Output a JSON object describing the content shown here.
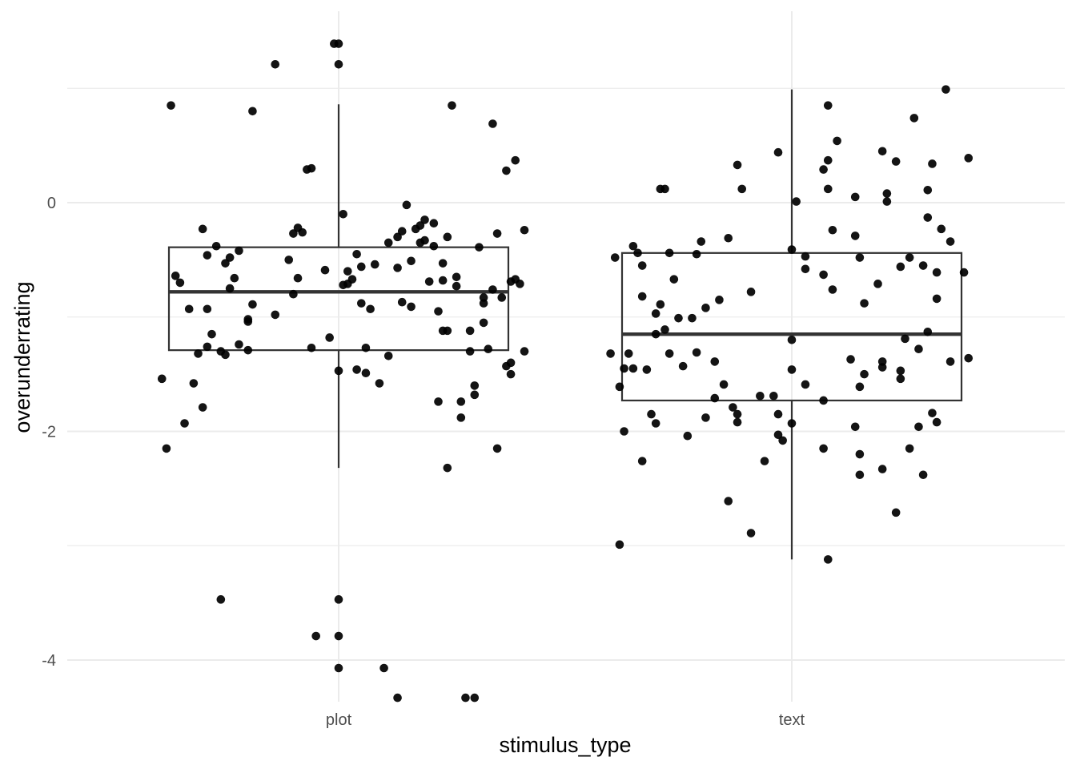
{
  "chart_data": {
    "type": "boxplot-jitter",
    "xlabel": "stimulus_type",
    "ylabel": "overunderrating",
    "categories": [
      "plot",
      "text"
    ],
    "ylim": [
      -4.3,
      1.7
    ],
    "y_ticks": [
      {
        "value": 0,
        "label": "0"
      },
      {
        "value": -2,
        "label": "-2"
      },
      {
        "value": -4,
        "label": "-4"
      }
    ],
    "y_minor_ticks": [
      1,
      -1,
      -3
    ],
    "grid": true,
    "colors": {
      "point": "#000000",
      "box": "#333333",
      "grid": "#ebebeb"
    },
    "boxes": [
      {
        "category": "plot",
        "whisker_low": -2.32,
        "q1": -1.29,
        "median": -0.78,
        "q3": -0.39,
        "whisker_high": 0.86
      },
      {
        "category": "text",
        "whisker_low": -3.12,
        "q1": -1.73,
        "median": -1.15,
        "q3": -0.44,
        "whisker_high": 0.99
      }
    ],
    "points": {
      "plot": [
        [
          -0.35,
          -0.7
        ],
        [
          -0.39,
          -1.54
        ],
        [
          -0.38,
          -2.15
        ],
        [
          -0.37,
          0.85
        ],
        [
          -0.36,
          -0.64
        ],
        [
          -0.34,
          -1.93
        ],
        [
          -0.33,
          -0.93
        ],
        [
          -0.32,
          -1.58
        ],
        [
          -0.31,
          -1.32
        ],
        [
          -0.3,
          -1.79
        ],
        [
          -0.3,
          -0.23
        ],
        [
          -0.29,
          -0.46
        ],
        [
          -0.29,
          -0.93
        ],
        [
          -0.29,
          -1.26
        ],
        [
          -0.28,
          -1.15
        ],
        [
          -0.27,
          -0.38
        ],
        [
          -0.26,
          -3.47
        ],
        [
          -0.26,
          -1.3
        ],
        [
          -0.25,
          -0.53
        ],
        [
          -0.25,
          -1.33
        ],
        [
          -0.24,
          -0.48
        ],
        [
          -0.24,
          -0.75
        ],
        [
          -0.23,
          -0.66
        ],
        [
          -0.22,
          -1.24
        ],
        [
          -0.22,
          -0.42
        ],
        [
          -0.2,
          -1.02
        ],
        [
          -0.2,
          -1.29
        ],
        [
          -0.2,
          -1.04
        ],
        [
          -0.19,
          -0.89
        ],
        [
          -0.19,
          0.8
        ],
        [
          -0.14,
          1.21
        ],
        [
          -0.14,
          -0.98
        ],
        [
          -0.11,
          -0.5
        ],
        [
          -0.1,
          -0.8
        ],
        [
          -0.1,
          -0.27
        ],
        [
          -0.09,
          -0.22
        ],
        [
          -0.09,
          -0.66
        ],
        [
          -0.08,
          -0.26
        ],
        [
          -0.07,
          0.29
        ],
        [
          -0.06,
          0.3
        ],
        [
          -0.06,
          -1.27
        ],
        [
          -0.05,
          -3.79
        ],
        [
          -0.03,
          -0.59
        ],
        [
          -0.02,
          -1.18
        ],
        [
          -0.01,
          1.39
        ],
        [
          0.0,
          1.39
        ],
        [
          0.0,
          1.21
        ],
        [
          0.0,
          -1.47
        ],
        [
          0.0,
          -3.47
        ],
        [
          0.0,
          -3.79
        ],
        [
          0.0,
          -4.07
        ],
        [
          0.01,
          -0.1
        ],
        [
          0.01,
          -0.72
        ],
        [
          0.02,
          -0.6
        ],
        [
          0.02,
          -0.71
        ],
        [
          0.03,
          -0.67
        ],
        [
          0.04,
          -0.45
        ],
        [
          0.04,
          -1.46
        ],
        [
          0.05,
          -0.88
        ],
        [
          0.05,
          -0.56
        ],
        [
          0.06,
          -1.27
        ],
        [
          0.06,
          -1.49
        ],
        [
          0.07,
          -0.93
        ],
        [
          0.08,
          -0.54
        ],
        [
          0.09,
          -1.58
        ],
        [
          0.1,
          -4.07
        ],
        [
          0.11,
          -1.34
        ],
        [
          0.11,
          -0.35
        ],
        [
          0.13,
          -0.57
        ],
        [
          0.13,
          -0.3
        ],
        [
          0.14,
          -0.25
        ],
        [
          0.14,
          -0.87
        ],
        [
          0.15,
          -0.02
        ],
        [
          0.16,
          -0.51
        ],
        [
          0.16,
          -0.91
        ],
        [
          0.17,
          -0.23
        ],
        [
          0.18,
          -0.2
        ],
        [
          0.18,
          -0.35
        ],
        [
          0.19,
          -0.33
        ],
        [
          0.19,
          -0.15
        ],
        [
          0.2,
          -0.69
        ],
        [
          0.21,
          -0.18
        ],
        [
          0.21,
          -0.38
        ],
        [
          0.22,
          -1.74
        ],
        [
          0.22,
          -0.95
        ],
        [
          0.23,
          -0.53
        ],
        [
          0.23,
          -1.12
        ],
        [
          0.23,
          -0.68
        ],
        [
          0.24,
          -2.32
        ],
        [
          0.24,
          -0.3
        ],
        [
          0.24,
          -1.12
        ],
        [
          0.25,
          0.85
        ],
        [
          0.26,
          -0.65
        ],
        [
          0.26,
          -0.73
        ],
        [
          0.27,
          -1.88
        ],
        [
          0.27,
          -1.74
        ],
        [
          0.29,
          -1.12
        ],
        [
          0.29,
          -1.3
        ],
        [
          0.3,
          -1.6
        ],
        [
          0.3,
          -1.68
        ],
        [
          0.31,
          -0.39
        ],
        [
          0.32,
          -0.88
        ],
        [
          0.32,
          -1.05
        ],
        [
          0.32,
          -0.83
        ],
        [
          0.33,
          -1.28
        ],
        [
          0.34,
          -0.76
        ],
        [
          0.34,
          0.69
        ],
        [
          0.35,
          -0.27
        ],
        [
          0.35,
          -2.15
        ],
        [
          0.36,
          -0.83
        ],
        [
          0.37,
          0.28
        ],
        [
          0.37,
          -1.43
        ],
        [
          0.38,
          -0.69
        ],
        [
          0.38,
          -1.4
        ],
        [
          0.38,
          -1.5
        ],
        [
          0.39,
          0.37
        ],
        [
          0.39,
          -0.67
        ],
        [
          0.4,
          -0.71
        ],
        [
          0.41,
          -0.24
        ],
        [
          0.41,
          -1.3
        ],
        [
          0.13,
          -4.33
        ],
        [
          0.28,
          -4.33
        ],
        [
          0.3,
          -4.33
        ]
      ],
      "text": [
        [
          -0.39,
          -0.48
        ],
        [
          -0.4,
          -1.32
        ],
        [
          -0.38,
          -2.99
        ],
        [
          -0.38,
          -1.61
        ],
        [
          -0.37,
          -2.0
        ],
        [
          -0.37,
          -1.45
        ],
        [
          -0.36,
          -1.32
        ],
        [
          -0.35,
          -1.45
        ],
        [
          -0.35,
          -0.38
        ],
        [
          -0.34,
          -0.44
        ],
        [
          -0.33,
          -2.26
        ],
        [
          -0.33,
          -0.55
        ],
        [
          -0.33,
          -0.82
        ],
        [
          -0.32,
          -1.46
        ],
        [
          -0.31,
          -1.85
        ],
        [
          -0.3,
          -1.15
        ],
        [
          -0.3,
          -0.97
        ],
        [
          -0.3,
          -1.93
        ],
        [
          -0.29,
          0.12
        ],
        [
          -0.29,
          -0.89
        ],
        [
          -0.28,
          -1.11
        ],
        [
          -0.28,
          0.12
        ],
        [
          -0.27,
          -1.32
        ],
        [
          -0.27,
          -0.44
        ],
        [
          -0.26,
          -0.67
        ],
        [
          -0.25,
          -1.01
        ],
        [
          -0.24,
          -1.43
        ],
        [
          -0.23,
          -2.04
        ],
        [
          -0.22,
          -1.01
        ],
        [
          -0.21,
          -1.31
        ],
        [
          -0.21,
          -0.45
        ],
        [
          -0.2,
          -0.34
        ],
        [
          -0.19,
          -0.92
        ],
        [
          -0.19,
          -1.88
        ],
        [
          -0.17,
          -1.39
        ],
        [
          -0.17,
          -1.71
        ],
        [
          -0.16,
          -0.85
        ],
        [
          -0.15,
          -1.59
        ],
        [
          -0.14,
          -0.31
        ],
        [
          -0.14,
          -2.61
        ],
        [
          -0.13,
          -1.79
        ],
        [
          -0.12,
          -1.85
        ],
        [
          -0.12,
          0.33
        ],
        [
          -0.12,
          -1.92
        ],
        [
          -0.11,
          0.12
        ],
        [
          -0.09,
          -2.89
        ],
        [
          -0.09,
          -0.78
        ],
        [
          -0.07,
          -1.69
        ],
        [
          -0.06,
          -2.26
        ],
        [
          -0.04,
          -1.69
        ],
        [
          -0.03,
          -2.03
        ],
        [
          -0.03,
          -1.85
        ],
        [
          -0.03,
          0.44
        ],
        [
          -0.02,
          -2.08
        ],
        [
          0.0,
          -1.46
        ],
        [
          0.0,
          -0.41
        ],
        [
          0.0,
          -1.2
        ],
        [
          0.0,
          -1.93
        ],
        [
          0.01,
          0.01
        ],
        [
          0.03,
          -0.47
        ],
        [
          0.03,
          -0.58
        ],
        [
          0.03,
          -1.59
        ],
        [
          0.07,
          -0.63
        ],
        [
          0.07,
          -1.73
        ],
        [
          0.07,
          -2.15
        ],
        [
          0.07,
          0.29
        ],
        [
          0.08,
          0.37
        ],
        [
          0.08,
          0.12
        ],
        [
          0.08,
          -3.12
        ],
        [
          0.08,
          0.85
        ],
        [
          0.09,
          -0.24
        ],
        [
          0.09,
          -0.76
        ],
        [
          0.1,
          0.54
        ],
        [
          0.13,
          -1.37
        ],
        [
          0.14,
          0.05
        ],
        [
          0.14,
          -0.29
        ],
        [
          0.14,
          -1.96
        ],
        [
          0.15,
          -2.38
        ],
        [
          0.15,
          -1.61
        ],
        [
          0.15,
          -2.2
        ],
        [
          0.15,
          -0.48
        ],
        [
          0.16,
          -0.88
        ],
        [
          0.16,
          -1.5
        ],
        [
          0.19,
          -0.71
        ],
        [
          0.2,
          -1.39
        ],
        [
          0.2,
          0.45
        ],
        [
          0.2,
          -2.33
        ],
        [
          0.2,
          -1.44
        ],
        [
          0.21,
          0.08
        ],
        [
          0.21,
          0.01
        ],
        [
          0.23,
          -2.71
        ],
        [
          0.23,
          0.36
        ],
        [
          0.24,
          -0.56
        ],
        [
          0.24,
          -1.54
        ],
        [
          0.24,
          -1.47
        ],
        [
          0.25,
          -1.19
        ],
        [
          0.26,
          -0.48
        ],
        [
          0.26,
          -2.15
        ],
        [
          0.27,
          0.74
        ],
        [
          0.28,
          -1.28
        ],
        [
          0.28,
          -1.96
        ],
        [
          0.29,
          -0.55
        ],
        [
          0.29,
          -2.38
        ],
        [
          0.3,
          0.11
        ],
        [
          0.3,
          -1.13
        ],
        [
          0.3,
          -0.13
        ],
        [
          0.31,
          -1.84
        ],
        [
          0.31,
          0.34
        ],
        [
          0.32,
          -1.92
        ],
        [
          0.32,
          -0.84
        ],
        [
          0.32,
          -0.61
        ],
        [
          0.33,
          -0.23
        ],
        [
          0.34,
          0.99
        ],
        [
          0.35,
          -0.34
        ],
        [
          0.35,
          -1.39
        ],
        [
          0.38,
          -0.61
        ],
        [
          0.39,
          0.39
        ],
        [
          0.39,
          -1.36
        ]
      ]
    }
  }
}
